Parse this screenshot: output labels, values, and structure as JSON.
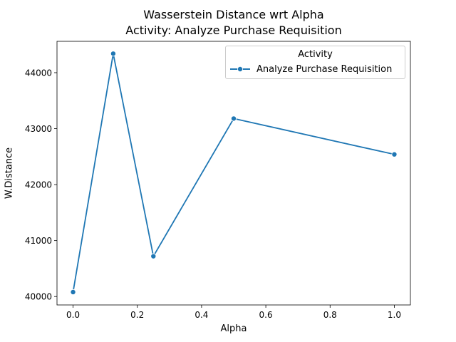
{
  "chart_data": {
    "type": "line",
    "title": "Wasserstein Distance wrt Alpha",
    "subtitle": "Activity: Analyze Purchase Requisition",
    "xlabel": "Alpha",
    "ylabel": "W.Distance",
    "xlim": [
      -0.05,
      1.05
    ],
    "ylim": [
      39850,
      44560
    ],
    "xticks": [
      0.0,
      0.2,
      0.4,
      0.6,
      0.8,
      1.0
    ],
    "xtick_labels": [
      "0.0",
      "0.2",
      "0.4",
      "0.6",
      "0.8",
      "1.0"
    ],
    "yticks": [
      40000,
      41000,
      42000,
      43000,
      44000
    ],
    "ytick_labels": [
      "40000",
      "41000",
      "42000",
      "43000",
      "44000"
    ],
    "grid": false,
    "legend": {
      "title": "Activity",
      "placement": "top-right"
    },
    "series": [
      {
        "name": "Analyze Purchase Requisition",
        "color": "#1f77b4",
        "marker": "circle",
        "x": [
          0.0,
          0.125,
          0.25,
          0.5,
          1.0
        ],
        "y": [
          40080,
          44340,
          40720,
          43180,
          42540
        ]
      }
    ]
  }
}
